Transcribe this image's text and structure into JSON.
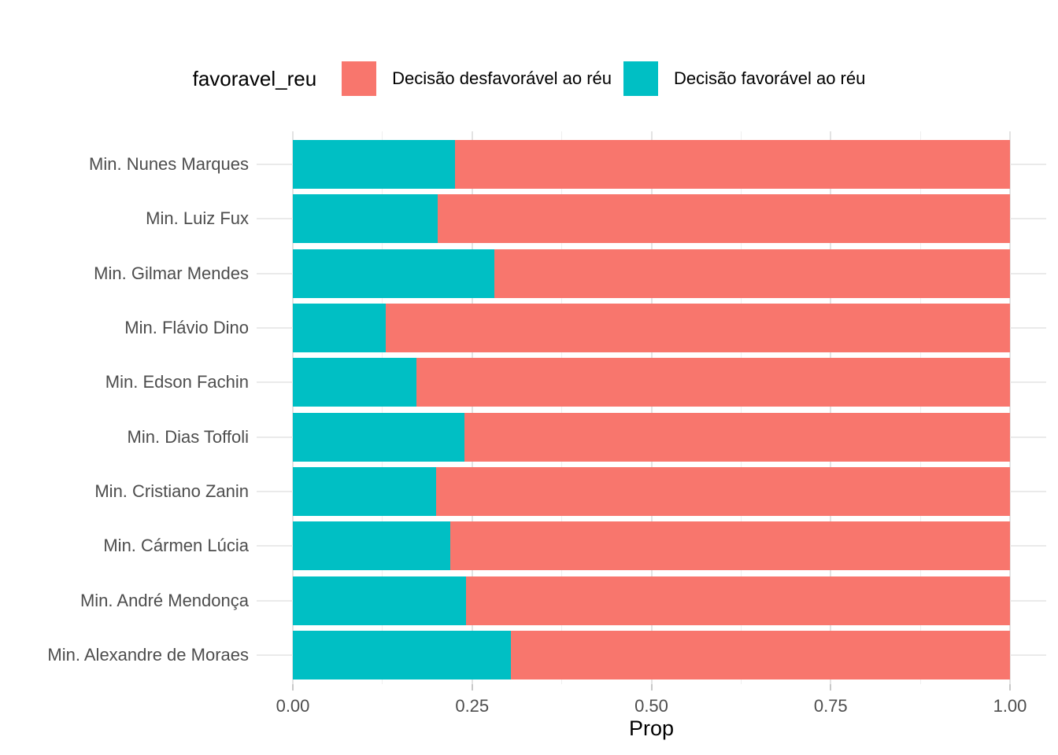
{
  "legend": {
    "title": "favoravel_reu",
    "position": "top",
    "items": [
      {
        "key": "desfavoravel",
        "label": "Decisão desfavorável ao réu",
        "color": "#F8766D"
      },
      {
        "key": "favoravel",
        "label": "Decisão favorável ao réu",
        "color": "#00BFC4"
      }
    ]
  },
  "chart_data": {
    "type": "bar",
    "orientation": "horizontal",
    "stacked": true,
    "normalized": true,
    "title": "",
    "xlabel": "Prop",
    "ylabel": "",
    "xlim": [
      0,
      1
    ],
    "grid": true,
    "legend_position": "top",
    "x_ticks": [
      0,
      0.25,
      0.5,
      0.75,
      1
    ],
    "x_tick_labels": [
      "0.00",
      "0.25",
      "0.50",
      "0.75",
      "1.00"
    ],
    "x_minor_ticks": [
      0.125,
      0.375,
      0.625,
      0.875
    ],
    "categories": [
      "Min. Nunes Marques",
      "Min. Luiz Fux",
      "Min. Gilmar Mendes",
      "Min. Flávio Dino",
      "Min. Edson Fachin",
      "Min. Dias Toffoli",
      "Min. Cristiano Zanin",
      "Min. Cármen Lúcia",
      "Min. André Mendonça",
      "Min. Alexandre de Moraes"
    ],
    "series": [
      {
        "name": "Decisão favorável ao réu",
        "key": "favoravel",
        "color": "#00BFC4",
        "values": [
          0.226,
          0.202,
          0.281,
          0.13,
          0.172,
          0.239,
          0.2,
          0.22,
          0.242,
          0.304
        ]
      },
      {
        "name": "Decisão desfavorável ao réu",
        "key": "desfavoravel",
        "color": "#F8766D",
        "values": [
          0.774,
          0.798,
          0.719,
          0.87,
          0.828,
          0.761,
          0.8,
          0.78,
          0.758,
          0.696
        ]
      }
    ]
  },
  "colors": {
    "desfavoravel": "#F8766D",
    "favoravel": "#00BFC4",
    "grid_major": "#E3E3E3",
    "grid_minor": "#EFEFEF",
    "axis_text": "#4D4D4D",
    "title_text": "#000000",
    "background": "#FFFFFF"
  }
}
